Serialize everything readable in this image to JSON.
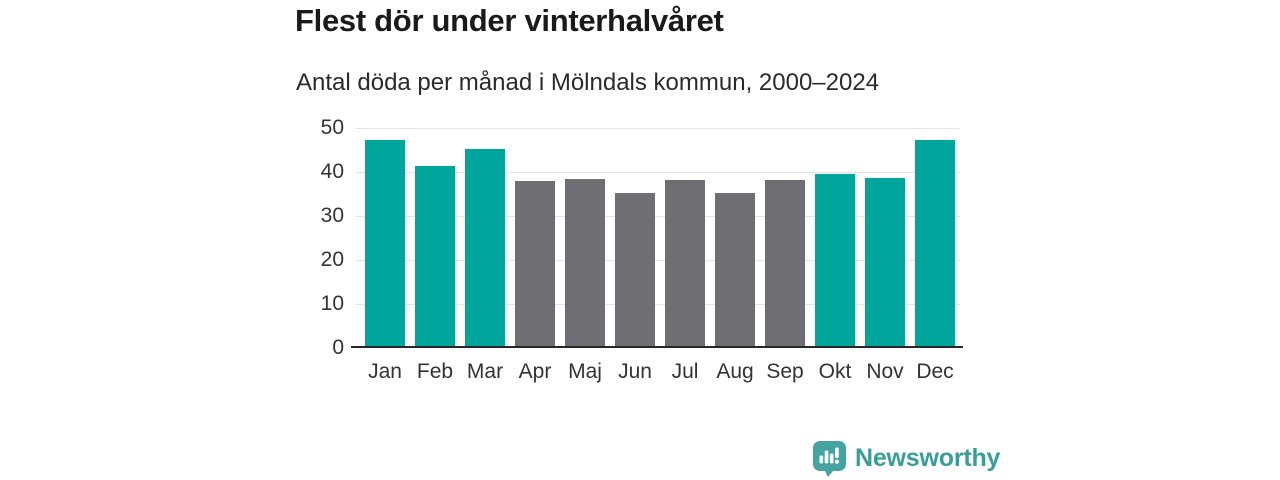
{
  "header": {
    "title": "Flest dör under vinterhalvåret",
    "subtitle": "Antal döda per månad i Mölndals kommun, 2000–2024"
  },
  "chart_data": {
    "type": "bar",
    "title": "Flest dör under vinterhalvåret",
    "subtitle": "Antal döda per månad i Mölndals kommun, 2000–2024",
    "categories": [
      "Jan",
      "Feb",
      "Mar",
      "Apr",
      "Maj",
      "Jun",
      "Jul",
      "Aug",
      "Sep",
      "Okt",
      "Nov",
      "Dec"
    ],
    "values": [
      47.3,
      41.3,
      45.2,
      37.9,
      38.4,
      35.3,
      38.2,
      35.2,
      38.1,
      39.6,
      38.7,
      47.3
    ],
    "bar_groups": [
      "winter",
      "winter",
      "winter",
      "summer",
      "summer",
      "summer",
      "summer",
      "summer",
      "summer",
      "winter",
      "winter",
      "winter"
    ],
    "group_colors": {
      "winter": "#00a59b",
      "summer": "#6e6e73"
    },
    "xlabel": "",
    "ylabel": "",
    "ylim": [
      0,
      50
    ],
    "yticks": [
      0,
      10,
      20,
      30,
      40,
      50
    ],
    "grid": true,
    "legend": "none"
  },
  "footer": {
    "brand": "Newsworthy",
    "logo_icon": "bar-chart-speech-bubble-icon"
  },
  "colors": {
    "background": "#ffffff",
    "title_text": "#1a1a1a",
    "subtitle_text": "#2b2b2b",
    "axis_text": "#333333",
    "gridline": "#e4e4e4",
    "baseline": "#28282a",
    "winter_bar": "#00a59b",
    "summer_bar": "#6e6e73",
    "logo_icon": "#45a4a0",
    "logo_text": "#389e99"
  }
}
